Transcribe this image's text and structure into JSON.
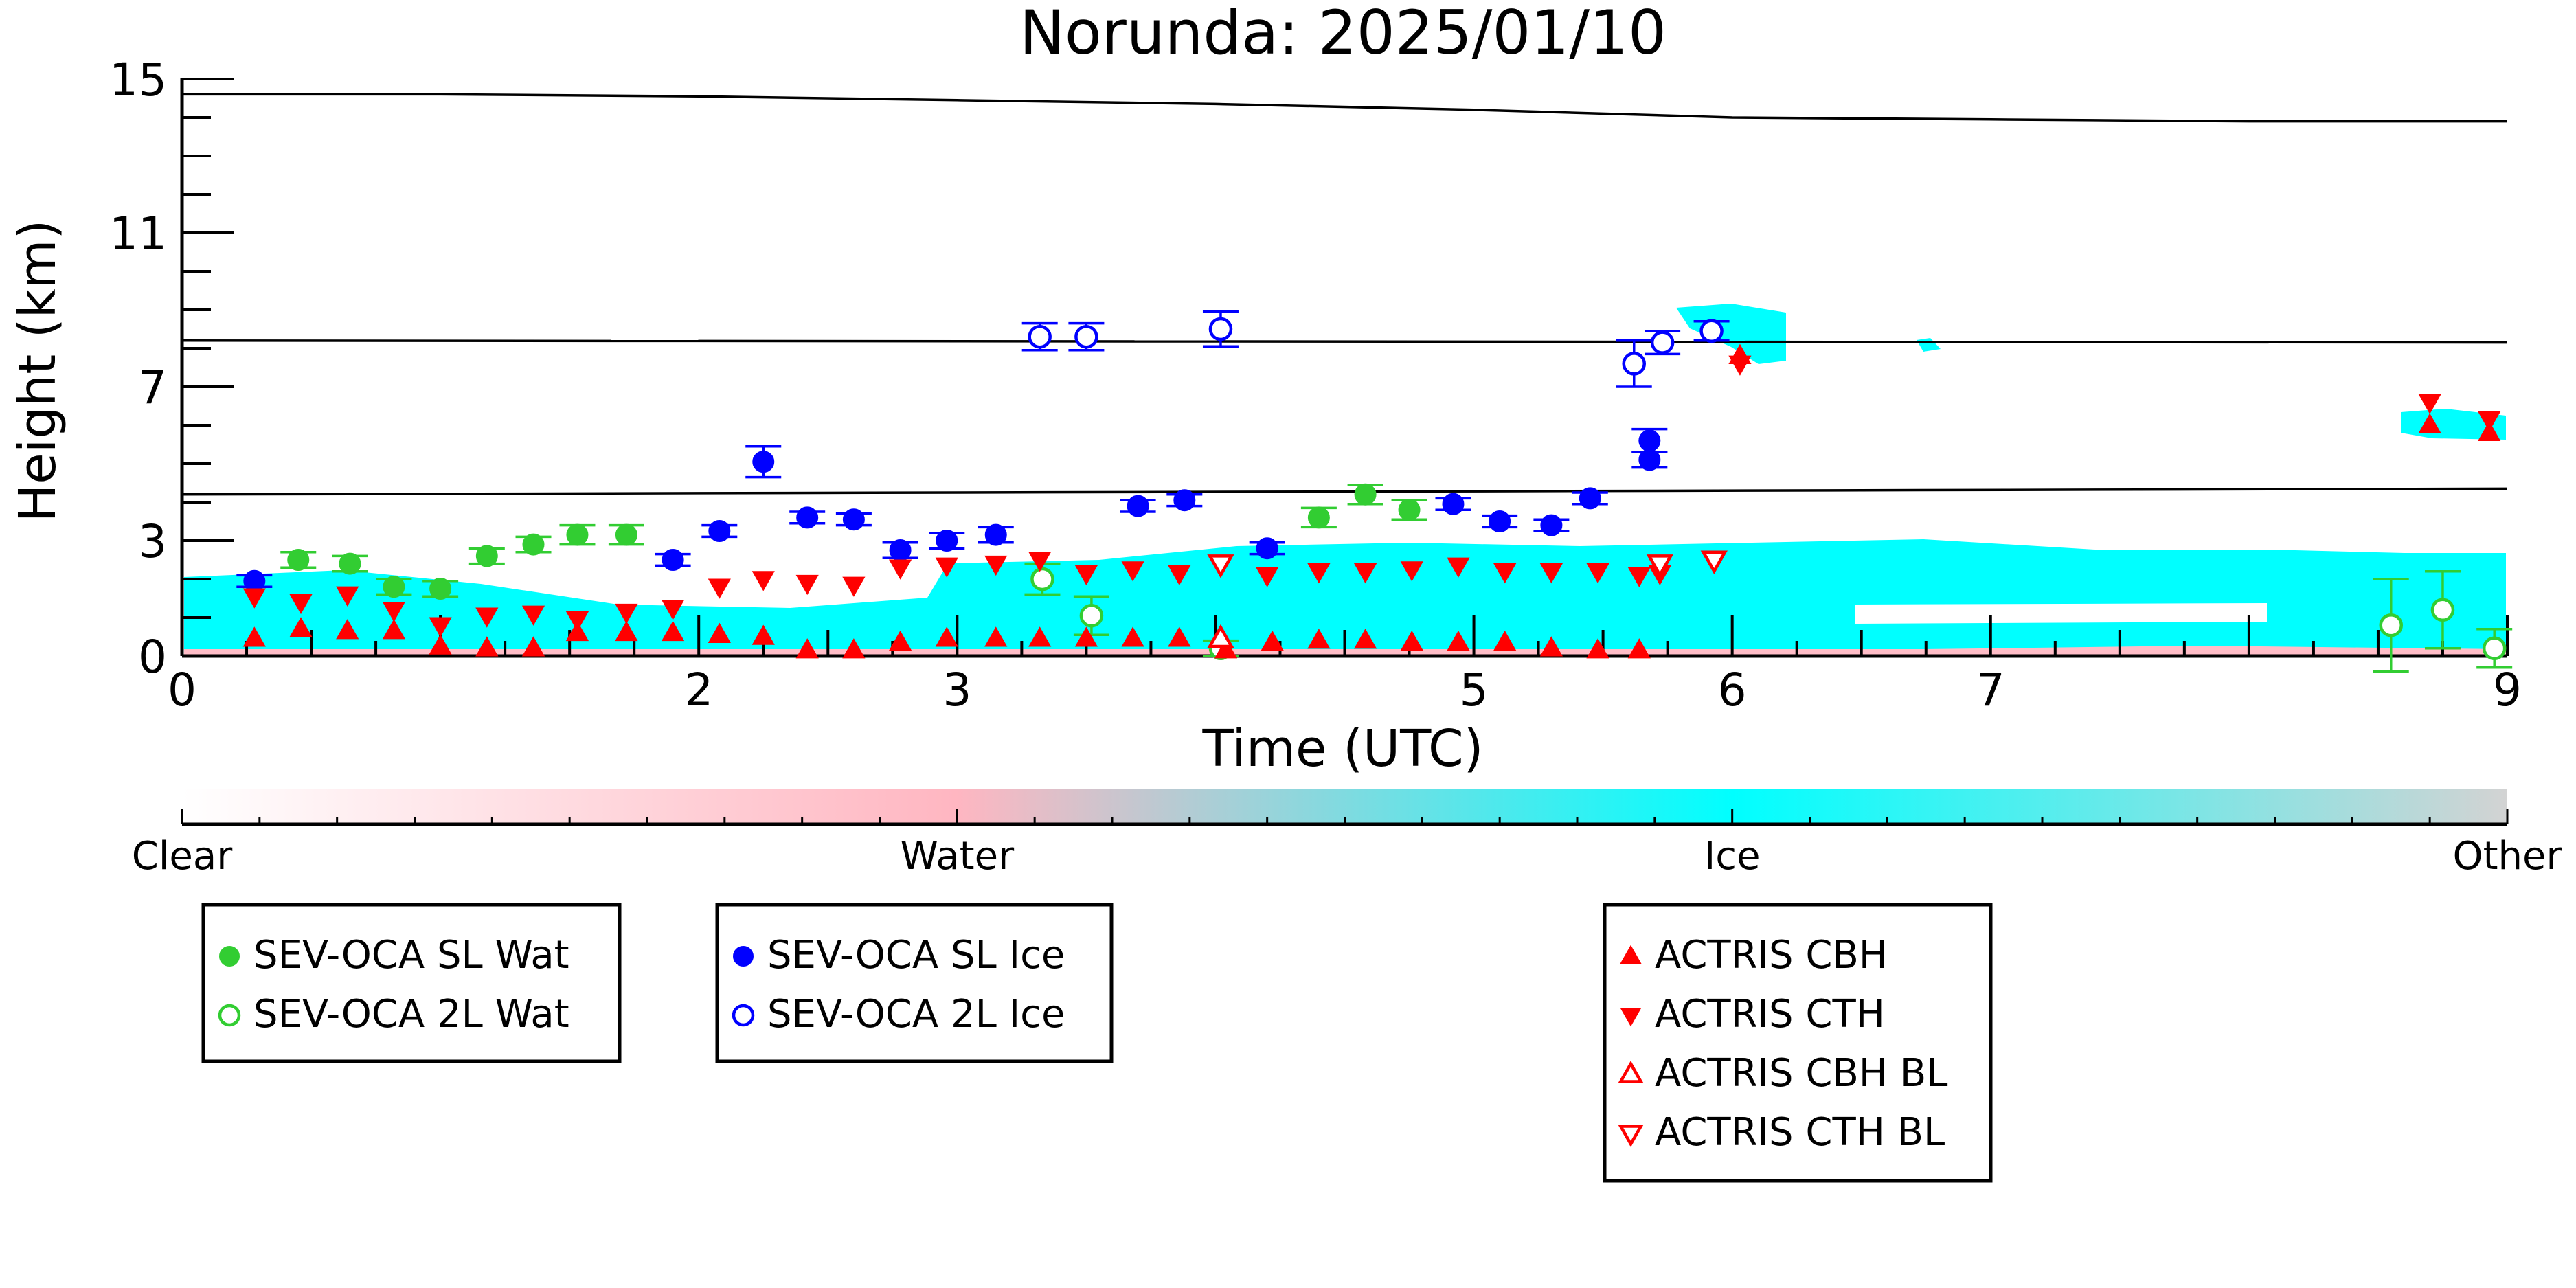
{
  "chart_data": {
    "type": "scatter",
    "title": "Norunda: 2025/01/10",
    "xlabel": "Time (UTC)",
    "ylabel": "Height (km)",
    "xlim": [
      0,
      9
    ],
    "ylim": [
      0,
      15
    ],
    "xticks": [
      "0",
      "2",
      "3",
      "5",
      "6",
      "7",
      "9"
    ],
    "xtick_values": [
      0,
      2,
      3,
      5,
      6,
      7,
      9
    ],
    "yticks": [
      "0",
      "3",
      "7",
      "11",
      "15"
    ],
    "ytick_values": [
      0,
      3,
      7,
      11,
      15
    ],
    "grid": false,
    "reference_lines": [
      {
        "x": [
          0,
          1,
          2,
          3,
          4,
          5,
          6,
          7,
          8,
          9
        ],
        "y": [
          14.6,
          14.6,
          14.55,
          14.45,
          14.35,
          14.2,
          14.0,
          13.95,
          13.9,
          13.9
        ]
      },
      {
        "x": [
          0,
          9
        ],
        "y": [
          8.2,
          8.15
        ]
      },
      {
        "x": [
          0,
          9
        ],
        "y": [
          4.2,
          4.35
        ]
      }
    ],
    "colorbar": {
      "labels": [
        "Clear",
        "Water",
        "Ice",
        "Other"
      ],
      "colors": [
        "#ffffff",
        "#ffb6c1",
        "#00ffff",
        "#d3d3d3"
      ]
    },
    "series": [
      {
        "name": "SEV-OCA SL Wat",
        "marker": "filled-circle",
        "color": "#32cd32",
        "points": [
          {
            "x": 0.45,
            "y": 2.5,
            "err": 0.2
          },
          {
            "x": 0.65,
            "y": 2.4,
            "err": 0.2
          },
          {
            "x": 0.82,
            "y": 1.8,
            "err": 0.2
          },
          {
            "x": 1.0,
            "y": 1.75,
            "err": 0.2
          },
          {
            "x": 1.18,
            "y": 2.6,
            "err": 0.2
          },
          {
            "x": 1.36,
            "y": 2.9,
            "err": 0.2
          },
          {
            "x": 1.53,
            "y": 3.15,
            "err": 0.25
          },
          {
            "x": 1.72,
            "y": 3.15,
            "err": 0.25
          },
          {
            "x": 4.4,
            "y": 3.6,
            "err": 0.25
          },
          {
            "x": 4.58,
            "y": 4.2,
            "err": 0.25
          },
          {
            "x": 4.75,
            "y": 3.8,
            "err": 0.25
          }
        ]
      },
      {
        "name": "SEV-OCA 2L Wat",
        "marker": "open-circle",
        "color": "#32cd32",
        "points": [
          {
            "x": 3.33,
            "y": 2.0,
            "err": 0.4
          },
          {
            "x": 3.52,
            "y": 1.05,
            "err": 0.5
          },
          {
            "x": 4.02,
            "y": 0.2,
            "err": 0.2
          },
          {
            "x": 8.55,
            "y": 0.8,
            "err": 1.2
          },
          {
            "x": 8.75,
            "y": 1.2,
            "err": 1.0
          },
          {
            "x": 8.95,
            "y": 0.2,
            "err": 0.5
          }
        ]
      },
      {
        "name": "SEV-OCA SL Ice",
        "marker": "filled-circle",
        "color": "#0000ff",
        "points": [
          {
            "x": 0.28,
            "y": 1.95,
            "err": 0.15
          },
          {
            "x": 1.9,
            "y": 2.5,
            "err": 0.15
          },
          {
            "x": 2.08,
            "y": 3.25,
            "err": 0.15
          },
          {
            "x": 2.25,
            "y": 5.05,
            "err": 0.4
          },
          {
            "x": 2.42,
            "y": 3.6,
            "err": 0.15
          },
          {
            "x": 2.6,
            "y": 3.55,
            "err": 0.15
          },
          {
            "x": 2.78,
            "y": 2.75,
            "err": 0.2
          },
          {
            "x": 2.96,
            "y": 3.0,
            "err": 0.2
          },
          {
            "x": 3.15,
            "y": 3.15,
            "err": 0.2
          },
          {
            "x": 3.7,
            "y": 3.9,
            "err": 0.15
          },
          {
            "x": 3.88,
            "y": 4.05,
            "err": 0.15
          },
          {
            "x": 4.2,
            "y": 2.8,
            "err": 0.15
          },
          {
            "x": 4.92,
            "y": 3.95,
            "err": 0.15
          },
          {
            "x": 5.1,
            "y": 3.5,
            "err": 0.15
          },
          {
            "x": 5.3,
            "y": 3.4,
            "err": 0.15
          },
          {
            "x": 5.45,
            "y": 4.1,
            "err": 0.15
          },
          {
            "x": 5.68,
            "y": 5.1,
            "err": 0.2
          },
          {
            "x": 5.68,
            "y": 5.6,
            "err": 0.3
          }
        ]
      },
      {
        "name": "SEV-OCA 2L Ice",
        "marker": "open-circle",
        "color": "#0000ff",
        "points": [
          {
            "x": 3.32,
            "y": 8.3,
            "err": 0.35
          },
          {
            "x": 3.5,
            "y": 8.3,
            "err": 0.35
          },
          {
            "x": 4.02,
            "y": 8.5,
            "err": 0.45
          },
          {
            "x": 5.62,
            "y": 7.6,
            "err": 0.6
          },
          {
            "x": 5.73,
            "y": 8.15,
            "err": 0.3
          },
          {
            "x": 5.92,
            "y": 8.45,
            "err": 0.25
          }
        ]
      },
      {
        "name": "ACTRIS CBH",
        "marker": "triangle-up",
        "color": "#ff0000",
        "points": [
          {
            "x": 0.28,
            "y": 0.45
          },
          {
            "x": 0.46,
            "y": 0.7
          },
          {
            "x": 0.64,
            "y": 0.65
          },
          {
            "x": 0.82,
            "y": 0.65
          },
          {
            "x": 1.0,
            "y": 0.25
          },
          {
            "x": 1.18,
            "y": 0.2
          },
          {
            "x": 1.36,
            "y": 0.2
          },
          {
            "x": 1.53,
            "y": 0.6
          },
          {
            "x": 1.72,
            "y": 0.6
          },
          {
            "x": 1.9,
            "y": 0.6
          },
          {
            "x": 2.08,
            "y": 0.55
          },
          {
            "x": 2.25,
            "y": 0.5
          },
          {
            "x": 2.42,
            "y": 0.15
          },
          {
            "x": 2.6,
            "y": 0.15
          },
          {
            "x": 2.78,
            "y": 0.35
          },
          {
            "x": 2.96,
            "y": 0.45
          },
          {
            "x": 3.15,
            "y": 0.45
          },
          {
            "x": 3.32,
            "y": 0.45
          },
          {
            "x": 3.5,
            "y": 0.45
          },
          {
            "x": 3.68,
            "y": 0.45
          },
          {
            "x": 3.86,
            "y": 0.45
          },
          {
            "x": 4.04,
            "y": 0.15
          },
          {
            "x": 4.22,
            "y": 0.35
          },
          {
            "x": 4.4,
            "y": 0.4
          },
          {
            "x": 4.58,
            "y": 0.4
          },
          {
            "x": 4.76,
            "y": 0.35
          },
          {
            "x": 4.94,
            "y": 0.35
          },
          {
            "x": 5.12,
            "y": 0.35
          },
          {
            "x": 5.3,
            "y": 0.2
          },
          {
            "x": 5.48,
            "y": 0.15
          },
          {
            "x": 5.64,
            "y": 0.15
          },
          {
            "x": 6.03,
            "y": 7.8
          },
          {
            "x": 8.7,
            "y": 6.0
          },
          {
            "x": 8.93,
            "y": 5.8
          }
        ]
      },
      {
        "name": "ACTRIS CTH",
        "marker": "triangle-down",
        "color": "#ff0000",
        "points": [
          {
            "x": 0.28,
            "y": 1.55
          },
          {
            "x": 0.46,
            "y": 1.4
          },
          {
            "x": 0.64,
            "y": 1.6
          },
          {
            "x": 0.82,
            "y": 1.2
          },
          {
            "x": 1.0,
            "y": 0.8
          },
          {
            "x": 1.18,
            "y": 1.05
          },
          {
            "x": 1.36,
            "y": 1.1
          },
          {
            "x": 1.53,
            "y": 0.95
          },
          {
            "x": 1.72,
            "y": 1.15
          },
          {
            "x": 1.9,
            "y": 1.25
          },
          {
            "x": 2.08,
            "y": 1.8
          },
          {
            "x": 2.25,
            "y": 2.0
          },
          {
            "x": 2.42,
            "y": 1.9
          },
          {
            "x": 2.6,
            "y": 1.85
          },
          {
            "x": 2.78,
            "y": 2.3
          },
          {
            "x": 2.96,
            "y": 2.35
          },
          {
            "x": 3.15,
            "y": 2.4
          },
          {
            "x": 3.32,
            "y": 2.5
          },
          {
            "x": 3.5,
            "y": 2.15
          },
          {
            "x": 3.68,
            "y": 2.25
          },
          {
            "x": 3.86,
            "y": 2.15
          },
          {
            "x": 4.2,
            "y": 2.1
          },
          {
            "x": 4.4,
            "y": 2.2
          },
          {
            "x": 4.58,
            "y": 2.2
          },
          {
            "x": 4.76,
            "y": 2.25
          },
          {
            "x": 4.94,
            "y": 2.35
          },
          {
            "x": 5.12,
            "y": 2.2
          },
          {
            "x": 5.3,
            "y": 2.2
          },
          {
            "x": 5.48,
            "y": 2.2
          },
          {
            "x": 5.64,
            "y": 2.1
          },
          {
            "x": 5.72,
            "y": 2.15
          },
          {
            "x": 6.03,
            "y": 7.6
          },
          {
            "x": 8.7,
            "y": 6.6
          },
          {
            "x": 8.93,
            "y": 6.15
          }
        ]
      },
      {
        "name": "ACTRIS CBH BL",
        "marker": "open-triangle-up",
        "color": "#ff0000",
        "points": [
          {
            "x": 4.02,
            "y": 0.45
          }
        ]
      },
      {
        "name": "ACTRIS CTH BL",
        "marker": "open-triangle-down",
        "color": "#ff0000",
        "points": [
          {
            "x": 4.02,
            "y": 2.4
          },
          {
            "x": 5.72,
            "y": 2.4
          },
          {
            "x": 5.93,
            "y": 2.5
          }
        ]
      }
    ]
  }
}
